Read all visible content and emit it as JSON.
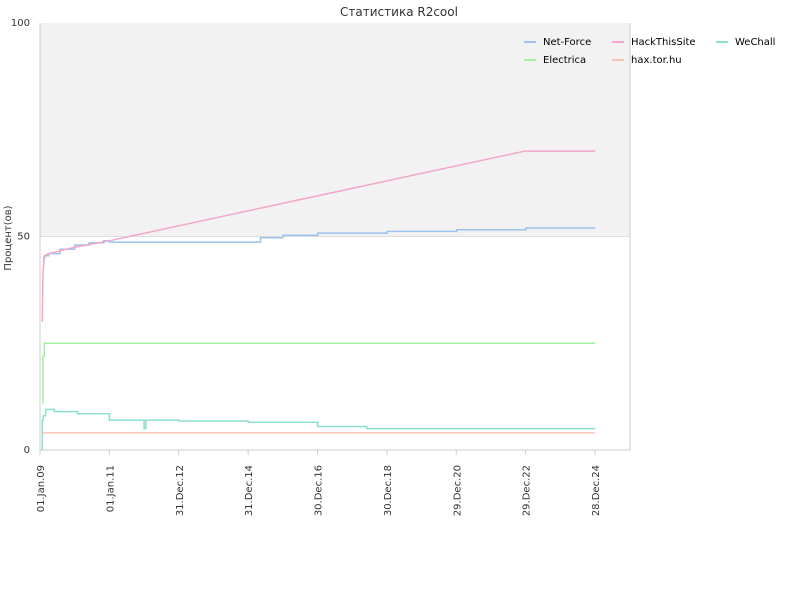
{
  "chart_data": {
    "type": "line",
    "title": "Статистика R2cool",
    "xlabel": "",
    "ylabel": "Процент(ов)",
    "ylim": [
      0,
      100
    ],
    "yticks": [
      0,
      50,
      100
    ],
    "xlim": [
      "2009-01-01",
      "2025-12-31"
    ],
    "xticks": [
      {
        "date": "2009-01-01",
        "label": "01.Jan.09"
      },
      {
        "date": "2011-01-01",
        "label": "01.Jan.11"
      },
      {
        "date": "2012-12-31",
        "label": "31.Dec.12"
      },
      {
        "date": "2014-12-31",
        "label": "31.Dec.14"
      },
      {
        "date": "2016-12-30",
        "label": "30.Dec.16"
      },
      {
        "date": "2018-12-30",
        "label": "30.Dec.18"
      },
      {
        "date": "2020-12-29",
        "label": "29.Dec.20"
      },
      {
        "date": "2022-12-29",
        "label": "29.Dec.22"
      },
      {
        "date": "2024-12-28",
        "label": "28.Dec.24"
      }
    ],
    "grid": true,
    "legend_position": "top-right",
    "series": [
      {
        "name": "Net-Force",
        "color": "#9cc2ee",
        "step": true,
        "x": [
          "2009-02-01",
          "2009-02-10",
          "2009-02-20",
          "2009-04-01",
          "2009-08-01",
          "2010-01-01",
          "2010-06-01",
          "2010-11-01",
          "2011-01-01",
          "2015-05-01",
          "2015-05-10",
          "2016-01-01",
          "2017-01-01",
          "2019-01-01",
          "2021-01-01",
          "2023-01-01",
          "2024-12-31"
        ],
        "y": [
          44,
          45,
          45.5,
          46,
          47,
          48,
          48.5,
          49,
          48.7,
          48.7,
          49.7,
          50.3,
          50.8,
          51.2,
          51.6,
          52,
          52
        ]
      },
      {
        "name": "HackThisSite",
        "color": "#f4a6cc",
        "step": false,
        "x": [
          "2009-01-25",
          "2009-02-01",
          "2009-02-15",
          "2009-04-01",
          "2010-01-01",
          "2011-01-01",
          "2022-12-20",
          "2024-12-31"
        ],
        "y": [
          30,
          41,
          45.5,
          46,
          47.5,
          49,
          70,
          70
        ]
      },
      {
        "name": "WeChall",
        "color": "#8ce0d0",
        "step": true,
        "x": [
          "2009-01-20",
          "2009-01-25",
          "2009-02-05",
          "2009-03-01",
          "2009-06-01",
          "2010-02-01",
          "2011-01-01",
          "2012-01-01",
          "2012-01-20",
          "2013-01-01",
          "2015-01-01",
          "2017-01-01",
          "2018-06-01",
          "2020-01-01",
          "2024-12-31"
        ],
        "y": [
          0,
          7,
          8,
          9.5,
          9,
          8.5,
          7,
          5,
          7,
          6.8,
          6.5,
          5.5,
          5,
          5,
          5
        ]
      },
      {
        "name": "Electrica",
        "color": "#a6eea0",
        "step": true,
        "x": [
          "2009-01-25",
          "2009-02-01",
          "2009-02-15",
          "2024-12-31"
        ],
        "y": [
          11,
          22,
          25,
          25
        ]
      },
      {
        "name": "hax.tor.hu",
        "color": "#f6c4b4",
        "step": false,
        "x": [
          "2009-02-01",
          "2024-12-31"
        ],
        "y": [
          4,
          4
        ]
      }
    ]
  }
}
